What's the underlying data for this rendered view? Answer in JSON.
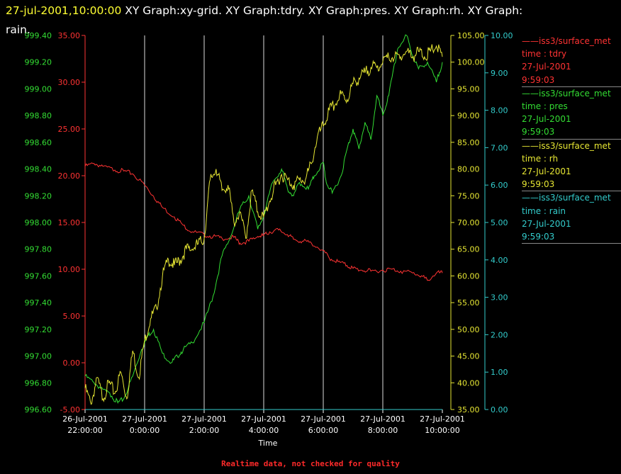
{
  "header": {
    "timestamp": "27-jul-2001,10:00:00",
    "graphs_line1": " XY Graph:xy-grid.  XY Graph:tdry.  XY Graph:pres.  XY Graph:rh.  XY Graph:",
    "graphs_line2": "rain."
  },
  "footnote": "Realtime data, not checked for quality",
  "legend": [
    {
      "name": "iss3/surface_met",
      "field": "time : tdry",
      "date": "27-Jul-2001",
      "time": "9:59:03",
      "color": "#ff3333"
    },
    {
      "name": "iss3/surface_met",
      "field": "time : pres",
      "date": "27-Jul-2001",
      "time": "9:59:03",
      "color": "#33dd33"
    },
    {
      "name": "iss3/surface_met",
      "field": "time : rh",
      "date": "27-Jul-2001",
      "time": "9:59:03",
      "color": "#e6e633"
    },
    {
      "name": "iss3/surface_met",
      "field": "time : rain",
      "date": "27-Jul-2001",
      "time": "9:59:03",
      "color": "#33cccc"
    }
  ],
  "chart_data": {
    "type": "line",
    "xlabel": "Time",
    "x_ticks": [
      {
        "date": "26-Jul-2001",
        "time": "22:00:00",
        "h": 0
      },
      {
        "date": "27-Jul-2001",
        "time": "0:00:00",
        "h": 2
      },
      {
        "date": "27-Jul-2001",
        "time": "2:00:00",
        "h": 4
      },
      {
        "date": "27-Jul-2001",
        "time": "4:00:00",
        "h": 6
      },
      {
        "date": "27-Jul-2001",
        "time": "6:00:00",
        "h": 8
      },
      {
        "date": "27-Jul-2001",
        "time": "8:00:00",
        "h": 10
      },
      {
        "date": "27-Jul-2001",
        "time": "10:00:00",
        "h": 12
      }
    ],
    "grid": "vertical",
    "axes": [
      {
        "series": "tdry",
        "color": "#ff3333",
        "range": [
          -5,
          35
        ],
        "ticks": [
          "-5.00",
          "0.00",
          "5.00",
          "10.00",
          "15.00",
          "20.00",
          "25.00",
          "30.00",
          "35.00"
        ]
      },
      {
        "series": "pres",
        "color": "#33dd33",
        "range": [
          996.6,
          999.4
        ],
        "ticks": [
          "996.60",
          "996.80",
          "997.00",
          "997.20",
          "997.40",
          "997.60",
          "997.80",
          "998.00",
          "998.20",
          "998.40",
          "998.60",
          "998.80",
          "999.00",
          "999.20",
          "999.40"
        ]
      },
      {
        "series": "rh",
        "color": "#e6e633",
        "range": [
          35,
          105
        ],
        "ticks": [
          "35.00",
          "40.00",
          "45.00",
          "50.00",
          "55.00",
          "60.00",
          "65.00",
          "70.00",
          "75.00",
          "80.00",
          "85.00",
          "90.00",
          "95.00",
          "100.00",
          "105.00"
        ]
      },
      {
        "series": "rain",
        "color": "#33cccc",
        "range": [
          0,
          10
        ],
        "ticks": [
          "0.00",
          "1.00",
          "2.00",
          "3.00",
          "4.00",
          "5.00",
          "6.00",
          "7.00",
          "8.00",
          "9.00",
          "10.00"
        ]
      }
    ],
    "series": [
      {
        "name": "tdry",
        "x": [
          0,
          0.3,
          0.6,
          1.0,
          1.3,
          1.6,
          2.0,
          2.3,
          2.6,
          3.0,
          3.3,
          3.6,
          4.0,
          4.3,
          4.6,
          5.0,
          5.2,
          5.5,
          5.8,
          6.0,
          6.2,
          6.5,
          6.8,
          7.0,
          7.3,
          7.6,
          8.0,
          8.2,
          8.5,
          8.8,
          9.0,
          9.3,
          9.6,
          10.0,
          10.3,
          10.6,
          11.0,
          11.3,
          11.5,
          11.8,
          12.0
        ],
        "values": [
          21.0,
          21.3,
          21.0,
          20.6,
          20.5,
          20.2,
          19.0,
          17.8,
          16.6,
          15.6,
          14.7,
          14.0,
          13.7,
          13.5,
          13.3,
          13.4,
          12.8,
          13.0,
          13.5,
          13.6,
          14.0,
          14.2,
          13.7,
          13.2,
          13.0,
          12.8,
          12.0,
          11.2,
          10.8,
          10.4,
          10.1,
          9.9,
          9.8,
          9.9,
          10.0,
          9.8,
          9.6,
          9.3,
          8.8,
          9.6,
          9.6
        ]
      },
      {
        "name": "pres",
        "x": [
          0,
          0.3,
          0.6,
          0.9,
          1.1,
          1.3,
          1.6,
          1.9,
          2.1,
          2.3,
          2.6,
          2.9,
          3.1,
          3.3,
          3.6,
          4.0,
          4.3,
          4.6,
          4.9,
          5.2,
          5.5,
          5.8,
          6.0,
          6.3,
          6.6,
          6.8,
          7.0,
          7.2,
          7.5,
          7.7,
          8.0,
          8.1,
          8.3,
          8.6,
          8.8,
          9.0,
          9.2,
          9.4,
          9.6,
          9.8,
          10.0,
          10.2,
          10.5,
          10.8,
          11.0,
          11.2,
          11.5,
          11.8,
          12.0
        ],
        "values": [
          996.85,
          996.8,
          996.75,
          996.7,
          996.65,
          996.68,
          996.85,
          997.05,
          997.15,
          997.2,
          997.02,
          996.95,
          997.0,
          997.05,
          997.1,
          997.25,
          997.45,
          997.75,
          997.9,
          998.1,
          998.2,
          997.95,
          998.05,
          998.3,
          998.4,
          998.25,
          998.2,
          998.3,
          998.25,
          998.35,
          998.45,
          998.3,
          998.22,
          998.35,
          998.55,
          998.7,
          998.55,
          998.75,
          998.62,
          998.95,
          998.8,
          998.95,
          999.3,
          999.4,
          999.25,
          999.15,
          999.2,
          999.05,
          999.2
        ]
      },
      {
        "name": "rh",
        "x": [
          0,
          0.2,
          0.4,
          0.6,
          0.8,
          1.0,
          1.2,
          1.4,
          1.6,
          1.8,
          2.0,
          2.2,
          2.4,
          2.6,
          2.8,
          3.0,
          3.2,
          3.4,
          3.6,
          3.8,
          4.0,
          4.2,
          4.4,
          4.6,
          4.8,
          5.0,
          5.2,
          5.4,
          5.6,
          5.8,
          6.0,
          6.2,
          6.4,
          6.6,
          6.8,
          7.0,
          7.2,
          7.4,
          7.6,
          7.8,
          8.0,
          8.2,
          8.4,
          8.6,
          8.8,
          9.0,
          9.2,
          9.4,
          9.6,
          9.8,
          10.0,
          10.2,
          10.4,
          10.6,
          10.8,
          11.0,
          11.2,
          11.4,
          11.6,
          11.8,
          12.0
        ],
        "values": [
          39,
          36,
          41,
          37,
          40,
          38,
          42,
          37,
          46,
          41,
          48,
          52,
          54,
          60,
          63,
          62,
          63,
          65,
          65,
          66,
          67,
          78,
          80,
          76,
          77,
          70,
          72,
          67,
          76,
          72,
          71,
          74,
          77,
          79,
          78,
          77,
          78,
          78,
          81,
          86,
          88,
          91,
          92,
          94,
          93,
          96,
          97,
          98,
          99,
          99,
          100,
          101,
          101,
          101,
          102,
          101,
          102,
          101,
          102,
          103,
          101
        ]
      },
      {
        "name": "rain",
        "x": [
          0,
          12
        ],
        "values": [
          0.0,
          0.0
        ]
      }
    ]
  }
}
